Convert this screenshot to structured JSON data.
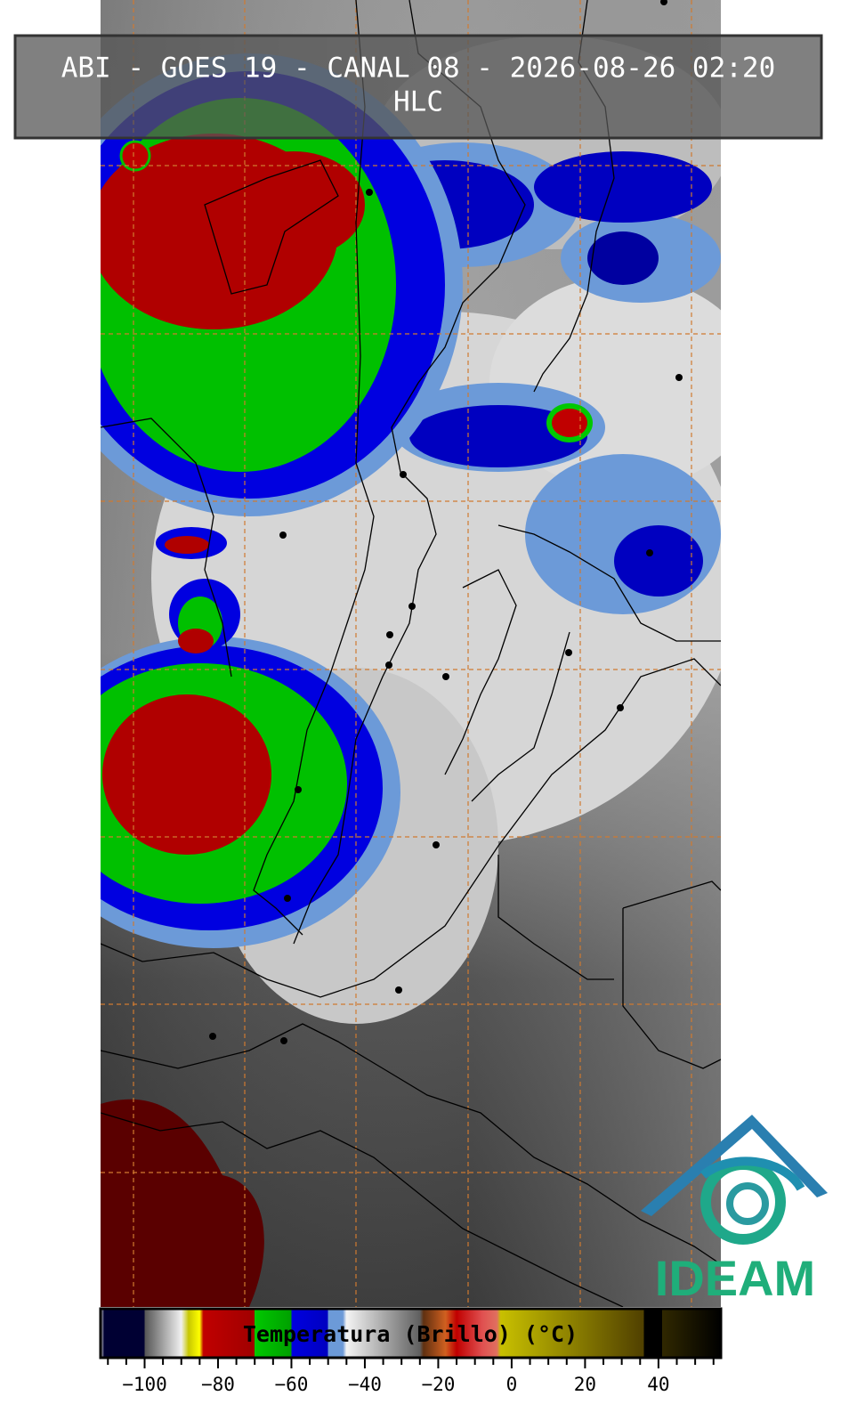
{
  "title": "ABI - GOES 19 - CANAL 08 - 2026-08-26 02:20",
  "subtitle": "HLC",
  "logo_text": "IDEAM",
  "colorbar": {
    "label": "Temperatura (Brillo) (°C)",
    "lim": [
      -112,
      57
    ],
    "ticks": [
      {
        "value": -100,
        "label": "−100"
      },
      {
        "value": -80,
        "label": "−80"
      },
      {
        "value": -60,
        "label": "−60"
      },
      {
        "value": -40,
        "label": "−40"
      },
      {
        "value": -20,
        "label": "−20"
      },
      0,
      20,
      40
    ],
    "minor_ticks": [
      -110,
      -105,
      -95,
      -90,
      -85,
      -75,
      -70,
      -65,
      -55,
      -50,
      -45,
      -35,
      -30,
      -25,
      -15,
      -10,
      -5,
      5,
      10,
      15,
      25,
      30,
      35,
      45,
      50,
      55
    ],
    "stops": [
      {
        "value": -112,
        "color": "#ffffff"
      },
      {
        "value": -111,
        "color": "#000033"
      },
      {
        "value": -100,
        "color": "#000033"
      },
      {
        "value": -100,
        "color": "#555555"
      },
      {
        "value": -90,
        "color": "#f0f0f0"
      },
      {
        "value": -88,
        "color": "#c8c800"
      },
      {
        "value": -85,
        "color": "#ffff00"
      },
      {
        "value": -84,
        "color": "#c00000"
      },
      {
        "value": -70,
        "color": "#a00000"
      },
      {
        "value": -70,
        "color": "#00c800"
      },
      {
        "value": -60,
        "color": "#00a000"
      },
      {
        "value": -60,
        "color": "#0000e0"
      },
      {
        "value": -50,
        "color": "#0000c0"
      },
      {
        "value": -50,
        "color": "#6c9ad8"
      },
      {
        "value": -46,
        "color": "#6c9ad8"
      },
      {
        "value": -45,
        "color": "#f4f4f4"
      },
      {
        "value": -25,
        "color": "#606060"
      },
      {
        "value": -24,
        "color": "#603010"
      },
      {
        "value": -18,
        "color": "#d06020"
      },
      {
        "value": -15,
        "color": "#c00000"
      },
      {
        "value": -8,
        "color": "#e05050"
      },
      {
        "value": -4,
        "color": "#e07060"
      },
      {
        "value": -3,
        "color": "#c8c000"
      },
      {
        "value": 36,
        "color": "#504000"
      },
      {
        "value": 36,
        "color": "#000000"
      },
      {
        "value": 41,
        "color": "#000000"
      },
      {
        "value": 41,
        "color": "#302800"
      },
      {
        "value": 57,
        "color": "#000000"
      }
    ]
  }
}
